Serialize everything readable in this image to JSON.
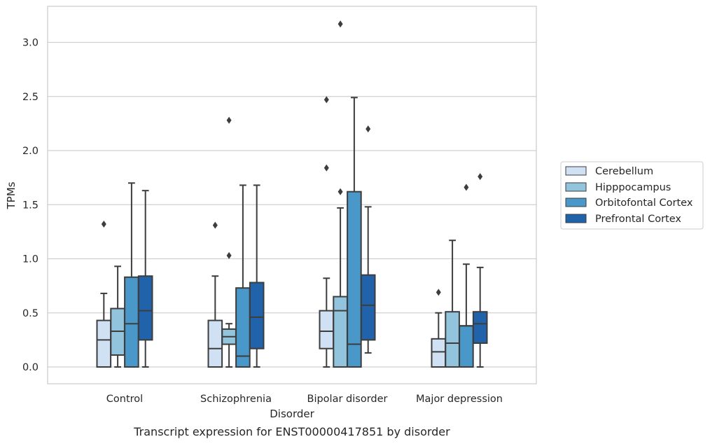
{
  "chart_data": {
    "type": "box",
    "title": "",
    "caption": "Transcript expression for ENST00000417851 by disorder",
    "xlabel": "Disorder",
    "ylabel": "TPMs",
    "ylim": [
      -0.15,
      3.3
    ],
    "yticks": [
      "0.0",
      "0.5",
      "1.0",
      "1.5",
      "2.0",
      "2.5",
      "3.0"
    ],
    "grid": "horizontal",
    "legend_position": "right",
    "categories": [
      "Control",
      "Schizophrenia",
      "Bipolar disorder",
      "Major depression"
    ],
    "series": [
      {
        "name": "Cerebellum",
        "color": "#cfe1f2",
        "boxes": [
          {
            "whislo": 0.0,
            "q1": 0.0,
            "med": 0.25,
            "q3": 0.43,
            "whishi": 0.68,
            "fliers": [
              1.32
            ]
          },
          {
            "whislo": 0.0,
            "q1": 0.0,
            "med": 0.17,
            "q3": 0.43,
            "whishi": 0.84,
            "fliers": [
              1.31
            ]
          },
          {
            "whislo": 0.0,
            "q1": 0.17,
            "med": 0.33,
            "q3": 0.52,
            "whishi": 0.82,
            "fliers": [
              1.84,
              2.47
            ]
          },
          {
            "whislo": 0.0,
            "q1": 0.0,
            "med": 0.14,
            "q3": 0.26,
            "whishi": 0.5,
            "fliers": [
              0.69
            ]
          }
        ]
      },
      {
        "name": "Hipppocampus",
        "color": "#93c4de",
        "boxes": [
          {
            "whislo": 0.0,
            "q1": 0.11,
            "med": 0.33,
            "q3": 0.54,
            "whishi": 0.93,
            "fliers": []
          },
          {
            "whislo": 0.0,
            "q1": 0.21,
            "med": 0.28,
            "q3": 0.35,
            "whishi": 0.4,
            "fliers": [
              1.03,
              2.28
            ]
          },
          {
            "whislo": 0.0,
            "q1": 0.0,
            "med": 0.52,
            "q3": 0.65,
            "whishi": 1.47,
            "fliers": [
              1.62,
              3.17
            ]
          },
          {
            "whislo": 0.0,
            "q1": 0.0,
            "med": 0.22,
            "q3": 0.51,
            "whishi": 1.17,
            "fliers": []
          }
        ]
      },
      {
        "name": "Orbitofontal Cortex",
        "color": "#4a98c9",
        "boxes": [
          {
            "whislo": 0.0,
            "q1": 0.0,
            "med": 0.4,
            "q3": 0.83,
            "whishi": 1.7,
            "fliers": []
          },
          {
            "whislo": 0.0,
            "q1": 0.0,
            "med": 0.1,
            "q3": 0.73,
            "whishi": 1.68,
            "fliers": []
          },
          {
            "whislo": 0.0,
            "q1": 0.0,
            "med": 0.21,
            "q3": 1.62,
            "whishi": 2.49,
            "fliers": []
          },
          {
            "whislo": 0.0,
            "q1": 0.0,
            "med": 0.38,
            "q3": 0.38,
            "whishi": 0.95,
            "fliers": [
              1.66
            ]
          }
        ]
      },
      {
        "name": "Prefrontal Cortex",
        "color": "#2163aa",
        "boxes": [
          {
            "whislo": 0.0,
            "q1": 0.25,
            "med": 0.52,
            "q3": 0.84,
            "whishi": 1.63,
            "fliers": []
          },
          {
            "whislo": 0.0,
            "q1": 0.17,
            "med": 0.46,
            "q3": 0.78,
            "whishi": 1.68,
            "fliers": []
          },
          {
            "whislo": 0.13,
            "q1": 0.25,
            "med": 0.57,
            "q3": 0.85,
            "whishi": 1.48,
            "fliers": [
              2.2
            ]
          },
          {
            "whislo": 0.0,
            "q1": 0.22,
            "med": 0.4,
            "q3": 0.51,
            "whishi": 0.92,
            "fliers": [
              1.76
            ]
          }
        ]
      }
    ]
  }
}
